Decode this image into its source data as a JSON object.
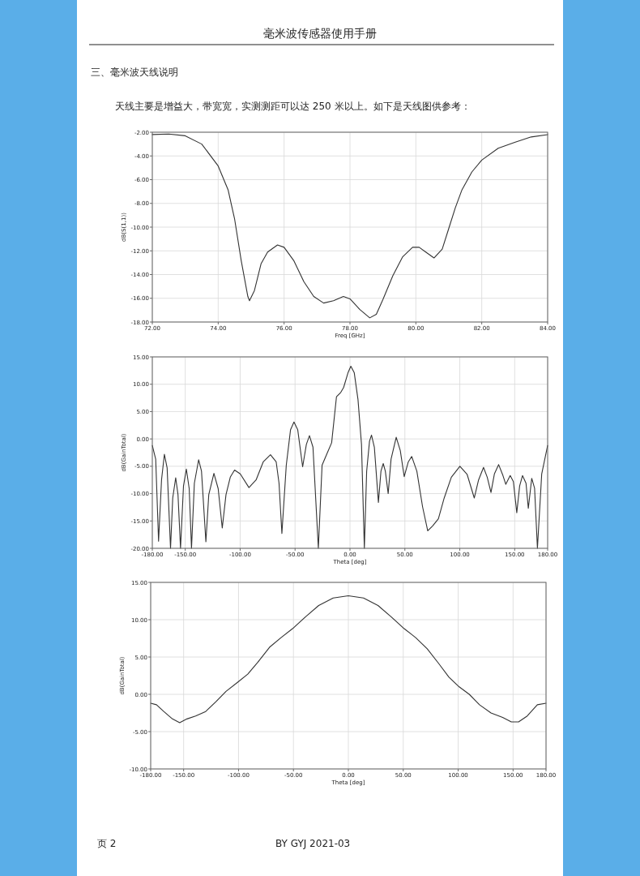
{
  "chart_data": [
    {
      "type": "line",
      "title": "毫米波传感器使用手册",
      "subtitle": "三、毫米波天线说明",
      "annotations": [
        "天线主要是增益大，带宽宽，实测测距可以达 250 米以上。如下是天线图供参考：",
        "页 2",
        "BY GYJ 2021-03"
      ],
      "xlabel": "Freq [GHz]",
      "ylabel": "dB(S(1,1))",
      "grid": true,
      "xlim": [
        72,
        84
      ],
      "ylim": [
        -18,
        -2
      ],
      "xticks": [
        {
          "value": 72,
          "label": "72.00"
        },
        {
          "value": 74,
          "label": "74.00"
        },
        {
          "value": 76,
          "label": "76.00"
        },
        {
          "value": 78,
          "label": "78.00"
        },
        {
          "value": 80,
          "label": "80.00"
        },
        {
          "value": 82,
          "label": "82.00"
        },
        {
          "value": 84,
          "label": "84.00"
        }
      ],
      "yticks": [
        {
          "value": -2,
          "label": "-2.00"
        },
        {
          "value": -4,
          "label": "-4.00"
        },
        {
          "value": -6,
          "label": "-6.00"
        },
        {
          "value": -8,
          "label": "-8.00"
        },
        {
          "value": -10,
          "label": "-10.00"
        },
        {
          "value": -12,
          "label": "-12.00"
        },
        {
          "value": -14,
          "label": "-14.00"
        },
        {
          "value": -16,
          "label": "-16.00"
        },
        {
          "value": -18,
          "label": "-18.00"
        }
      ],
      "x": [
        72,
        72.5,
        73,
        73.5,
        74,
        74.3,
        74.5,
        74.7,
        74.9,
        74.95,
        75.1,
        75.3,
        75.5,
        75.8,
        76,
        76.3,
        76.6,
        76.9,
        77.2,
        77.5,
        77.8,
        78,
        78.3,
        78.6,
        78.8,
        79,
        79.3,
        79.6,
        79.9,
        80.1,
        80.3,
        80.55,
        80.8,
        81,
        81.2,
        81.4,
        81.7,
        82,
        82.5,
        83,
        83.5,
        84
      ],
      "series": [
        {
          "color": "#333333",
          "values": [
            -2.2,
            -2.15,
            -2.3,
            -3.0,
            -4.85,
            -6.85,
            -9.35,
            -12.85,
            -15.85,
            -16.2,
            -15.35,
            -13.1,
            -12.1,
            -11.5,
            -11.7,
            -12.85,
            -14.6,
            -15.85,
            -16.4,
            -16.2,
            -15.85,
            -16.05,
            -16.95,
            -17.65,
            -17.35,
            -16.1,
            -14.1,
            -12.5,
            -11.7,
            -11.7,
            -12.1,
            -12.6,
            -11.85,
            -10.1,
            -8.35,
            -6.85,
            -5.35,
            -4.35,
            -3.35,
            -2.85,
            -2.4,
            -2.2
          ]
        }
      ]
    },
    {
      "type": "line",
      "xlabel": "Theta [deg]",
      "ylabel": "dB(GainTotal)",
      "grid": true,
      "xlim": [
        -180,
        180
      ],
      "ylim": [
        -20,
        15
      ],
      "xticks": [
        {
          "value": -180,
          "label": "-180.00"
        },
        {
          "value": -150,
          "label": "-150.00"
        },
        {
          "value": -100,
          "label": "-100.00"
        },
        {
          "value": -50,
          "label": "-50.00"
        },
        {
          "value": 0,
          "label": "0.00"
        },
        {
          "value": 50,
          "label": "50.00"
        },
        {
          "value": 100,
          "label": "100.00"
        },
        {
          "value": 150,
          "label": "150.00"
        },
        {
          "value": 180,
          "label": "180.00"
        }
      ],
      "yticks": [
        {
          "value": 15,
          "label": "15.00"
        },
        {
          "value": 10,
          "label": "10.00"
        },
        {
          "value": 5,
          "label": "5.00"
        },
        {
          "value": 0,
          "label": "0.00"
        },
        {
          "value": -5,
          "label": "-5.00"
        },
        {
          "value": -10,
          "label": "-10.00"
        },
        {
          "value": -15,
          "label": "-15.00"
        },
        {
          "value": -20,
          "label": "-20.00"
        }
      ],
      "x": [
        -180,
        -176.9,
        -174.3,
        -171.6,
        -169,
        -166.5,
        -163.4,
        -161.4,
        -158.7,
        -156.6,
        -154.3,
        -151.6,
        -149,
        -146.4,
        -144.3,
        -141.7,
        -137.8,
        -135.2,
        -131.2,
        -128.6,
        -123.9,
        -120,
        -116.3,
        -112.9,
        -109,
        -105.1,
        -99.9,
        -92,
        -85.5,
        -79,
        -72.4,
        -67.2,
        -64.6,
        -62,
        -58,
        -54.1,
        -51,
        -47.6,
        -43.1,
        -39.7,
        -36.9,
        -33.7,
        -28.8,
        -25.4,
        -21.4,
        -16.7,
        -12.3,
        -8.4,
        -5.8,
        -1.8,
        0.8,
        3.9,
        7.3,
        10.5,
        13.1,
        15.2,
        17.8,
        19.6,
        22.2,
        25.9,
        28.2,
        30.3,
        32.2,
        34.8,
        37.4,
        42.1,
        45.8,
        49.4,
        53.1,
        56.2,
        60.9,
        66.1,
        70.8,
        75.3,
        80.5,
        85.8,
        92.3,
        100.1,
        106.7,
        113.2,
        117.1,
        121.6,
        125,
        128.4,
        131.5,
        135.4,
        139.3,
        141.9,
        145.9,
        148.8,
        151.9,
        154.5,
        157.1,
        160.3,
        162.4,
        165.5,
        168.1,
        170.7,
        174.6,
        180
      ],
      "series": [
        {
          "color": "#333333",
          "values": [
            -1.2,
            -3.7,
            -18.7,
            -7.5,
            -2.8,
            -5.3,
            -20,
            -10.8,
            -7.1,
            -10.2,
            -20,
            -8.6,
            -5.5,
            -9.1,
            -20,
            -8.1,
            -3.8,
            -5.9,
            -18.8,
            -10.2,
            -6.3,
            -9.1,
            -16.3,
            -10.2,
            -7,
            -5.7,
            -6.4,
            -8.9,
            -7.5,
            -4.2,
            -2.9,
            -4.2,
            -8.1,
            -17.3,
            -4.8,
            1.7,
            3.1,
            1.7,
            -5.1,
            -1,
            0.6,
            -1.5,
            -20,
            -4.8,
            -2.9,
            -0.7,
            7.7,
            8.5,
            9.4,
            12.1,
            13.3,
            12.1,
            7.2,
            -1,
            -20,
            -5.9,
            -0.4,
            0.7,
            -1.5,
            -11.6,
            -5.9,
            -4.5,
            -5.9,
            -10,
            -3.7,
            0.3,
            -2.1,
            -6.9,
            -4.2,
            -3.2,
            -5.9,
            -12.4,
            -16.8,
            -15.9,
            -14.6,
            -10.8,
            -7,
            -5,
            -6.5,
            -10.8,
            -7.5,
            -5.2,
            -7,
            -9.8,
            -6.4,
            -4.7,
            -6.7,
            -8.3,
            -6.7,
            -7.8,
            -13.5,
            -8.6,
            -6.7,
            -8.1,
            -12.7,
            -7.2,
            -9,
            -20,
            -6.4,
            -1.2
          ]
        }
      ]
    },
    {
      "type": "line",
      "xlabel": "Theta [deg]",
      "ylabel": "dB(GainTotal)",
      "grid": true,
      "xlim": [
        -180,
        180
      ],
      "ylim": [
        -10,
        15
      ],
      "xticks": [
        {
          "value": -180,
          "label": "-180.00"
        },
        {
          "value": -150,
          "label": "-150.00"
        },
        {
          "value": -100,
          "label": "-100.00"
        },
        {
          "value": -50,
          "label": "-50.00"
        },
        {
          "value": 0,
          "label": "0.00"
        },
        {
          "value": 50,
          "label": "50.00"
        },
        {
          "value": 100,
          "label": "100.00"
        },
        {
          "value": 150,
          "label": "150.00"
        },
        {
          "value": 180,
          "label": "180.00"
        }
      ],
      "yticks": [
        {
          "value": 15,
          "label": "15.00"
        },
        {
          "value": 10,
          "label": "10.00"
        },
        {
          "value": 5,
          "label": "5.00"
        },
        {
          "value": 0,
          "label": "0.00"
        },
        {
          "value": -5,
          "label": "-5.00"
        },
        {
          "value": -10,
          "label": "-10.00"
        }
      ],
      "x": [
        -180,
        -174.7,
        -168.1,
        -160.2,
        -153.6,
        -147,
        -139.1,
        -129.9,
        -120.6,
        -111.4,
        -100.9,
        -91.6,
        -82.4,
        -71.8,
        -61.3,
        -50.8,
        -38.9,
        -27,
        -13.8,
        0,
        13.8,
        27,
        38.9,
        50.8,
        61.3,
        71.8,
        82.4,
        91.6,
        100.9,
        110.1,
        119.4,
        129.9,
        140.5,
        148.4,
        155,
        162.9,
        172.1,
        180
      ],
      "series": [
        {
          "color": "#333333",
          "values": [
            -1.2,
            -1.4,
            -2.3,
            -3.3,
            -3.8,
            -3.3,
            -2.9,
            -2.3,
            -1,
            0.4,
            1.6,
            2.7,
            4.3,
            6.3,
            7.6,
            8.8,
            10.4,
            11.9,
            12.9,
            13.2,
            12.9,
            11.9,
            10.4,
            8.8,
            7.6,
            6.1,
            4.1,
            2.3,
            1,
            0,
            -1.4,
            -2.5,
            -3.1,
            -3.7,
            -3.7,
            -2.9,
            -1.4,
            -1.2
          ]
        }
      ]
    }
  ]
}
